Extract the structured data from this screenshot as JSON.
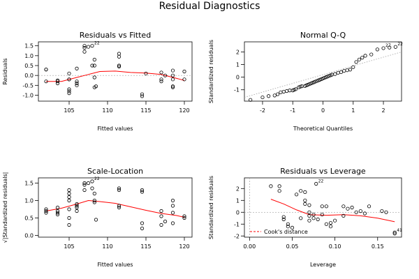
{
  "title": "Residual Diagnostics",
  "colors": {
    "axis": "#000000",
    "points": "#000000",
    "smooth": "#ff0000",
    "reference": "#a0a0a0",
    "cook": "#ff0000"
  },
  "chart_data": [
    {
      "type": "scatter",
      "title": "Residuals vs Fitted",
      "xlabel": "Fitted values",
      "ylabel": "Residuals",
      "xlim": [
        101,
        121
      ],
      "ylim": [
        -1.3,
        1.7
      ],
      "xticks": [
        "105",
        "110",
        "115",
        "120"
      ],
      "yticks": [
        "-1.0",
        "-0.5",
        "0.0",
        "0.5",
        "1.0",
        "1.5"
      ],
      "points": [
        [
          102,
          0.3
        ],
        [
          102,
          0.3
        ],
        [
          102,
          -0.3
        ],
        [
          103.5,
          -0.3
        ],
        [
          103.5,
          -0.4
        ],
        [
          103.5,
          -0.25
        ],
        [
          105,
          0.1
        ],
        [
          105,
          -0.2
        ],
        [
          105,
          -0.7
        ],
        [
          105,
          -0.8
        ],
        [
          105,
          -0.9
        ],
        [
          105,
          -0.2
        ],
        [
          106,
          -0.3
        ],
        [
          106,
          -0.4
        ],
        [
          106,
          -0.5
        ],
        [
          106,
          0.35
        ],
        [
          107,
          1.5
        ],
        [
          107,
          1.4
        ],
        [
          107,
          1.2
        ],
        [
          107.5,
          1.45
        ],
        [
          108,
          1.5
        ],
        [
          108,
          0.5
        ],
        [
          108.3,
          0.8
        ],
        [
          108.3,
          0.5
        ],
        [
          108.3,
          -0.1
        ],
        [
          108.3,
          -0.6
        ],
        [
          108.5,
          -0.55
        ],
        [
          111.5,
          1.1
        ],
        [
          111.5,
          0.95
        ],
        [
          111.5,
          0.5
        ],
        [
          111.5,
          0.45
        ],
        [
          114.5,
          -0.95
        ],
        [
          114.5,
          -1.05
        ],
        [
          115,
          0.1
        ],
        [
          117,
          -0.2
        ],
        [
          117,
          -0.3
        ],
        [
          117,
          0.15
        ],
        [
          117.5,
          0.0
        ],
        [
          118.5,
          0.25
        ],
        [
          118.5,
          0.0
        ],
        [
          118.5,
          -0.2
        ],
        [
          118.5,
          -0.55
        ],
        [
          118.5,
          -0.6
        ],
        [
          120,
          0.2
        ],
        [
          120,
          -0.2
        ]
      ],
      "point_labels": [
        {
          "x": 108,
          "y": 1.5,
          "text": "22"
        }
      ],
      "smooth": [
        [
          102,
          -0.3
        ],
        [
          104,
          -0.3
        ],
        [
          106,
          -0.1
        ],
        [
          107.5,
          0.05
        ],
        [
          109,
          0.2
        ],
        [
          111,
          0.22
        ],
        [
          113,
          0.15
        ],
        [
          115,
          0.12
        ],
        [
          117,
          0.05
        ],
        [
          119,
          -0.15
        ],
        [
          120,
          -0.25
        ]
      ]
    },
    {
      "type": "scatter",
      "title": "Normal Q-Q",
      "xlabel": "Theoretical Quantiles",
      "ylabel": "Standardized residuals",
      "xlim": [
        -2.6,
        2.6
      ],
      "ylim": [
        -1.9,
        2.8
      ],
      "xticks": [
        "-2",
        "-1",
        "0",
        "1",
        "2"
      ],
      "yticks": [
        "-1",
        "0",
        "1",
        "2"
      ],
      "points": [
        [
          -2.4,
          -1.8
        ],
        [
          -2.0,
          -1.6
        ],
        [
          -1.8,
          -1.5
        ],
        [
          -1.6,
          -1.45
        ],
        [
          -1.5,
          -1.35
        ],
        [
          -1.4,
          -1.2
        ],
        [
          -1.3,
          -1.15
        ],
        [
          -1.2,
          -1.1
        ],
        [
          -1.1,
          -1.05
        ],
        [
          -1.0,
          -1.05
        ],
        [
          -0.95,
          -1.0
        ],
        [
          -0.9,
          -0.95
        ],
        [
          -0.8,
          -0.8
        ],
        [
          -0.75,
          -0.75
        ],
        [
          -0.7,
          -0.72
        ],
        [
          -0.6,
          -0.7
        ],
        [
          -0.55,
          -0.65
        ],
        [
          -0.5,
          -0.6
        ],
        [
          -0.45,
          -0.55
        ],
        [
          -0.4,
          -0.5
        ],
        [
          -0.35,
          -0.45
        ],
        [
          -0.3,
          -0.4
        ],
        [
          -0.25,
          -0.35
        ],
        [
          -0.2,
          -0.3
        ],
        [
          -0.15,
          -0.25
        ],
        [
          -0.1,
          -0.2
        ],
        [
          -0.05,
          -0.15
        ],
        [
          0.0,
          -0.1
        ],
        [
          0.05,
          -0.05
        ],
        [
          0.1,
          0.0
        ],
        [
          0.15,
          0.05
        ],
        [
          0.2,
          0.1
        ],
        [
          0.25,
          0.15
        ],
        [
          0.3,
          0.2
        ],
        [
          0.4,
          0.25
        ],
        [
          0.5,
          0.35
        ],
        [
          0.6,
          0.4
        ],
        [
          0.7,
          0.5
        ],
        [
          0.8,
          0.55
        ],
        [
          0.9,
          0.6
        ],
        [
          1.0,
          0.8
        ],
        [
          1.1,
          1.2
        ],
        [
          1.2,
          1.4
        ],
        [
          1.3,
          1.55
        ],
        [
          1.4,
          1.7
        ],
        [
          1.6,
          1.8
        ],
        [
          1.8,
          2.2
        ],
        [
          2.0,
          2.3
        ],
        [
          2.2,
          2.35
        ],
        [
          2.4,
          2.4
        ]
      ],
      "point_labels": [
        {
          "x": 2.0,
          "y": 2.3,
          "text": "27"
        },
        {
          "x": 2.4,
          "y": 2.4,
          "text": "22"
        }
      ],
      "reference_line": [
        [
          -2.6,
          -1.6
        ],
        [
          2.6,
          2.0
        ]
      ]
    },
    {
      "type": "scatter",
      "title": "Scale-Location",
      "xlabel": "Fitted values",
      "ylabel": "√|Standardized residuals|",
      "xlim": [
        101,
        121
      ],
      "ylim": [
        -0.05,
        1.65
      ],
      "xticks": [
        "105",
        "110",
        "115",
        "120"
      ],
      "yticks": [
        "0.0",
        "0.5",
        "1.0",
        "1.5"
      ],
      "points": [
        [
          102,
          0.7
        ],
        [
          102,
          0.75
        ],
        [
          102,
          0.65
        ],
        [
          103.5,
          0.8
        ],
        [
          103.5,
          0.7
        ],
        [
          103.5,
          0.65
        ],
        [
          103.5,
          0.6
        ],
        [
          105,
          1.3
        ],
        [
          105,
          1.2
        ],
        [
          105,
          1.1
        ],
        [
          105,
          1.0
        ],
        [
          105,
          0.75
        ],
        [
          105,
          0.5
        ],
        [
          105,
          0.3
        ],
        [
          106,
          0.9
        ],
        [
          106,
          0.85
        ],
        [
          106,
          0.8
        ],
        [
          106,
          0.7
        ],
        [
          107,
          1.5
        ],
        [
          107,
          1.45
        ],
        [
          107,
          1.3
        ],
        [
          107.5,
          1.5
        ],
        [
          108,
          1.55
        ],
        [
          108,
          1.35
        ],
        [
          108.3,
          1.2
        ],
        [
          108.3,
          1.0
        ],
        [
          108.3,
          0.95
        ],
        [
          108.5,
          0.45
        ],
        [
          111.5,
          1.35
        ],
        [
          111.5,
          1.3
        ],
        [
          111.5,
          0.85
        ],
        [
          111.5,
          0.8
        ],
        [
          114.5,
          1.3
        ],
        [
          114.5,
          1.25
        ],
        [
          114.5,
          0.35
        ],
        [
          114.5,
          0.2
        ],
        [
          117,
          0.7
        ],
        [
          117,
          0.55
        ],
        [
          117,
          0.3
        ],
        [
          117.5,
          0.4
        ],
        [
          118.5,
          1.0
        ],
        [
          118.5,
          0.85
        ],
        [
          118.5,
          0.65
        ],
        [
          118.5,
          0.35
        ],
        [
          120,
          0.55
        ],
        [
          120,
          0.5
        ]
      ],
      "point_labels": [
        {
          "x": 108,
          "y": 1.55,
          "text": "22"
        }
      ],
      "smooth": [
        [
          102,
          0.7
        ],
        [
          104,
          0.78
        ],
        [
          106,
          0.9
        ],
        [
          107.5,
          1.0
        ],
        [
          109,
          0.97
        ],
        [
          111,
          0.92
        ],
        [
          113,
          0.82
        ],
        [
          115,
          0.72
        ],
        [
          117,
          0.63
        ],
        [
          119,
          0.57
        ],
        [
          120,
          0.52
        ]
      ]
    },
    {
      "type": "scatter",
      "title": "Residuals vs Leverage",
      "xlabel": "Leverage",
      "ylabel": "Standardized residuals",
      "xlim": [
        -0.006,
        0.178
      ],
      "ylim": [
        -2.1,
        2.9
      ],
      "xticks": [
        "0.00",
        "0.05",
        "0.10",
        "0.15"
      ],
      "yticks": [
        "-2",
        "-1",
        "0",
        "1",
        "2"
      ],
      "points": [
        [
          0.025,
          2.2
        ],
        [
          0.035,
          2.2
        ],
        [
          0.035,
          1.8
        ],
        [
          0.04,
          -0.4
        ],
        [
          0.04,
          -0.6
        ],
        [
          0.045,
          -1.0
        ],
        [
          0.045,
          -1.2
        ],
        [
          0.05,
          -1.3
        ],
        [
          0.055,
          1.5
        ],
        [
          0.06,
          1.8
        ],
        [
          0.06,
          -0.5
        ],
        [
          0.065,
          1.7
        ],
        [
          0.065,
          1.0
        ],
        [
          0.065,
          0.7
        ],
        [
          0.07,
          0.6
        ],
        [
          0.07,
          0.0
        ],
        [
          0.07,
          -0.3
        ],
        [
          0.07,
          -0.7
        ],
        [
          0.075,
          -0.5
        ],
        [
          0.075,
          -0.2
        ],
        [
          0.078,
          2.4
        ],
        [
          0.08,
          -0.6
        ],
        [
          0.085,
          0.5
        ],
        [
          0.085,
          -0.2
        ],
        [
          0.09,
          0.5
        ],
        [
          0.09,
          -1.0
        ],
        [
          0.095,
          -0.9
        ],
        [
          0.095,
          -1.2
        ],
        [
          0.1,
          -0.7
        ],
        [
          0.11,
          -0.3
        ],
        [
          0.11,
          0.5
        ],
        [
          0.115,
          0.3
        ],
        [
          0.12,
          0.4
        ],
        [
          0.125,
          0.0
        ],
        [
          0.13,
          0.1
        ],
        [
          0.135,
          -0.1
        ],
        [
          0.14,
          0.5
        ],
        [
          0.155,
          0.1
        ],
        [
          0.16,
          0.0
        ],
        [
          0.17,
          -1.7
        ],
        [
          0.17,
          -1.8
        ]
      ],
      "point_labels": [
        {
          "x": 0.078,
          "y": 2.4,
          "text": "22"
        },
        {
          "x": 0.17,
          "y": -1.75,
          "text": "41"
        }
      ],
      "smooth": [
        [
          0.025,
          1.1
        ],
        [
          0.04,
          0.7
        ],
        [
          0.055,
          0.2
        ],
        [
          0.07,
          -0.2
        ],
        [
          0.09,
          -0.25
        ],
        [
          0.11,
          -0.2
        ],
        [
          0.13,
          -0.3
        ],
        [
          0.15,
          -0.5
        ],
        [
          0.17,
          -0.8
        ]
      ],
      "legend": {
        "label": "Cook's distance",
        "position": "bottom-left"
      }
    }
  ]
}
